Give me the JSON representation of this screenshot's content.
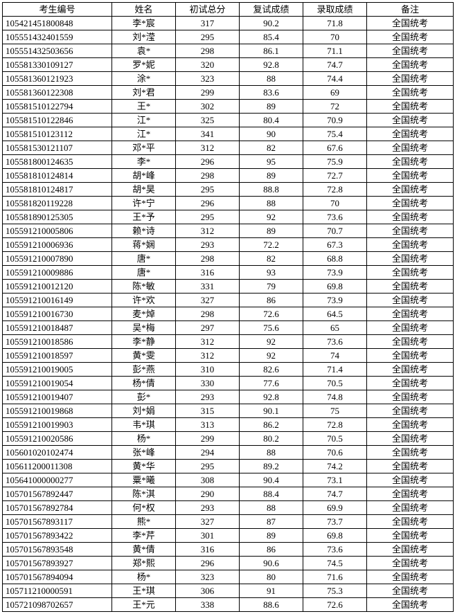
{
  "table": {
    "columns": [
      "考生编号",
      "姓名",
      "初试总分",
      "复试成绩",
      "录取成绩",
      "备注"
    ],
    "rows": [
      [
        "105421451800848",
        "李*宸",
        "317",
        "90.2",
        "71.8",
        "全国统考"
      ],
      [
        "105551432401559",
        "刘*滢",
        "295",
        "85.4",
        "70",
        "全国统考"
      ],
      [
        "105551432503656",
        "袁*",
        "298",
        "86.1",
        "71.1",
        "全国统考"
      ],
      [
        "105581330109127",
        "罗*妮",
        "320",
        "92.8",
        "74.7",
        "全国统考"
      ],
      [
        "105581360121923",
        "涂*",
        "323",
        "88",
        "74.4",
        "全国统考"
      ],
      [
        "105581360122308",
        "刘*君",
        "299",
        "83.6",
        "69",
        "全国统考"
      ],
      [
        "105581510122794",
        "王*",
        "302",
        "89",
        "72",
        "全国统考"
      ],
      [
        "105581510122846",
        "江*",
        "325",
        "80.4",
        "70.9",
        "全国统考"
      ],
      [
        "105581510123112",
        "江*",
        "341",
        "90",
        "75.4",
        "全国统考"
      ],
      [
        "105581530121107",
        "邓*平",
        "312",
        "82",
        "67.6",
        "全国统考"
      ],
      [
        "105581800124635",
        "李*",
        "296",
        "95",
        "75.9",
        "全国统考"
      ],
      [
        "105581810124814",
        "胡*峰",
        "298",
        "89",
        "72.7",
        "全国统考"
      ],
      [
        "105581810124817",
        "胡*昊",
        "295",
        "88.8",
        "72.8",
        "全国统考"
      ],
      [
        "105581820119228",
        "许*宁",
        "296",
        "88",
        "70",
        "全国统考"
      ],
      [
        "105581890125305",
        "王*予",
        "295",
        "92",
        "73.6",
        "全国统考"
      ],
      [
        "105591210005806",
        "赖*诗",
        "312",
        "89",
        "70.7",
        "全国统考"
      ],
      [
        "105591210006936",
        "蒋*娴",
        "293",
        "72.2",
        "67.3",
        "全国统考"
      ],
      [
        "105591210007890",
        "唐*",
        "298",
        "82",
        "68.8",
        "全国统考"
      ],
      [
        "105591210009886",
        "唐*",
        "316",
        "93",
        "73.9",
        "全国统考"
      ],
      [
        "105591210012120",
        "陈*敏",
        "331",
        "79",
        "69.8",
        "全国统考"
      ],
      [
        "105591210016149",
        "许*欢",
        "327",
        "86",
        "73.9",
        "全国统考"
      ],
      [
        "105591210016730",
        "麦*焯",
        "298",
        "72.6",
        "64.5",
        "全国统考"
      ],
      [
        "105591210018487",
        "吴*梅",
        "297",
        "75.6",
        "65",
        "全国统考"
      ],
      [
        "105591210018586",
        "李*静",
        "312",
        "92",
        "73.6",
        "全国统考"
      ],
      [
        "105591210018597",
        "黄*雯",
        "312",
        "92",
        "74",
        "全国统考"
      ],
      [
        "105591210019005",
        "彭*燕",
        "310",
        "82.6",
        "71.4",
        "全国统考"
      ],
      [
        "105591210019054",
        "杨*倩",
        "330",
        "77.6",
        "70.5",
        "全国统考"
      ],
      [
        "105591210019407",
        "彭*",
        "293",
        "92.8",
        "74.8",
        "全国统考"
      ],
      [
        "105591210019868",
        "刘*娟",
        "315",
        "90.1",
        "75",
        "全国统考"
      ],
      [
        "105591210019903",
        "韦*琪",
        "313",
        "86.2",
        "72.8",
        "全国统考"
      ],
      [
        "105591210020586",
        "杨*",
        "299",
        "80.2",
        "70.5",
        "全国统考"
      ],
      [
        "105601020102474",
        "张*峰",
        "294",
        "88",
        "70.6",
        "全国统考"
      ],
      [
        "105611200011308",
        "黄*华",
        "295",
        "89.2",
        "74.2",
        "全国统考"
      ],
      [
        "105641000000277",
        "粟*曦",
        "308",
        "90.4",
        "73.1",
        "全国统考"
      ],
      [
        "105701567892447",
        "陈*淇",
        "290",
        "88.4",
        "74.7",
        "全国统考"
      ],
      [
        "105701567892784",
        "何*权",
        "293",
        "88",
        "69.9",
        "全国统考"
      ],
      [
        "105701567893117",
        "熊*",
        "327",
        "87",
        "73.7",
        "全国统考"
      ],
      [
        "105701567893422",
        "李*芹",
        "301",
        "89",
        "69.8",
        "全国统考"
      ],
      [
        "105701567893548",
        "黄*倩",
        "316",
        "86",
        "73.6",
        "全国统考"
      ],
      [
        "105701567893927",
        "郑*熙",
        "296",
        "90.6",
        "74.5",
        "全国统考"
      ],
      [
        "105701567894094",
        "杨*",
        "323",
        "80",
        "71.6",
        "全国统考"
      ],
      [
        "105711210000591",
        "王*琪",
        "306",
        "91",
        "75.3",
        "全国统考"
      ],
      [
        "105721098702657",
        "王*元",
        "338",
        "88.6",
        "72.6",
        "全国统考"
      ]
    ]
  }
}
